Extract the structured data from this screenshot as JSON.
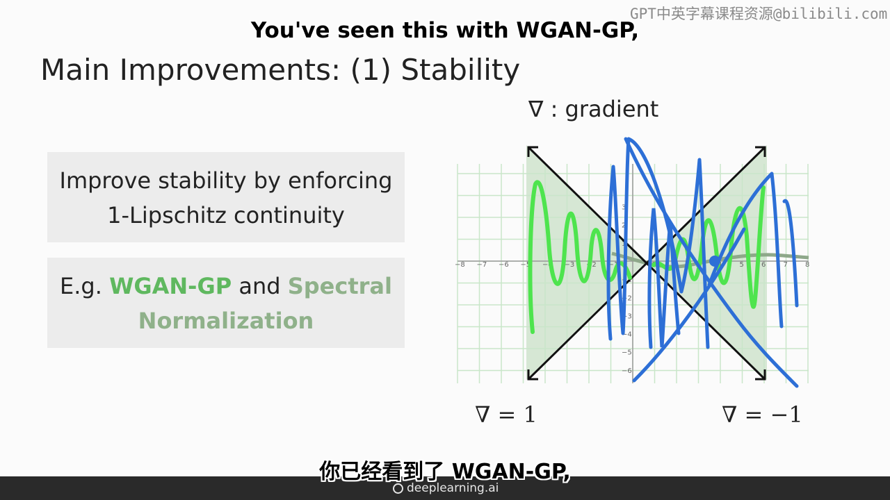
{
  "subtitle_en": "You've seen this with WGAN-GP,",
  "subtitle_zh": "你已经看到了 WGAN-GP,",
  "watermark": "GPT中英字幕课程资源@bilibili.com",
  "slide": {
    "title": "Main Improvements: (1) Stability",
    "box1": {
      "line1": "Improve stability by enforcing",
      "line2": "1-Lipschitz continuity"
    },
    "box2": {
      "prefix": "E.g. ",
      "wgan": "WGAN-GP",
      "and": " and ",
      "spectral": "Spectral",
      "normalization": "Normalization"
    },
    "gradient_label": "∇ : gradient",
    "eq_left": "∇ = 1",
    "eq_right": "∇ = −1",
    "x_ticks": [
      "−8",
      "−7",
      "−6",
      "−5",
      "−4",
      "−3",
      "−2",
      "−1",
      "1",
      "2",
      "3",
      "4",
      "5",
      "6",
      "7",
      "8"
    ],
    "y_ticks": [
      "3",
      "2",
      "1",
      "−1",
      "−2",
      "−3",
      "−4",
      "−5",
      "−6"
    ]
  },
  "footer": {
    "brand": "deeplearning.ai"
  },
  "colors": {
    "shade": "#cfe3cc",
    "green_pen": "#4ee44e",
    "blue_pen": "#2d6fd6",
    "grid": "#c9e6c9"
  }
}
